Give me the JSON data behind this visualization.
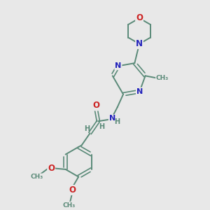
{
  "bg_color": "#e8e8e8",
  "bond_color": "#5a8a78",
  "nitrogen_color": "#2222bb",
  "oxygen_color": "#cc2222",
  "figsize": [
    3.0,
    3.0
  ],
  "dpi": 100,
  "xlim": [
    0,
    10
  ],
  "ylim": [
    0,
    10
  ]
}
